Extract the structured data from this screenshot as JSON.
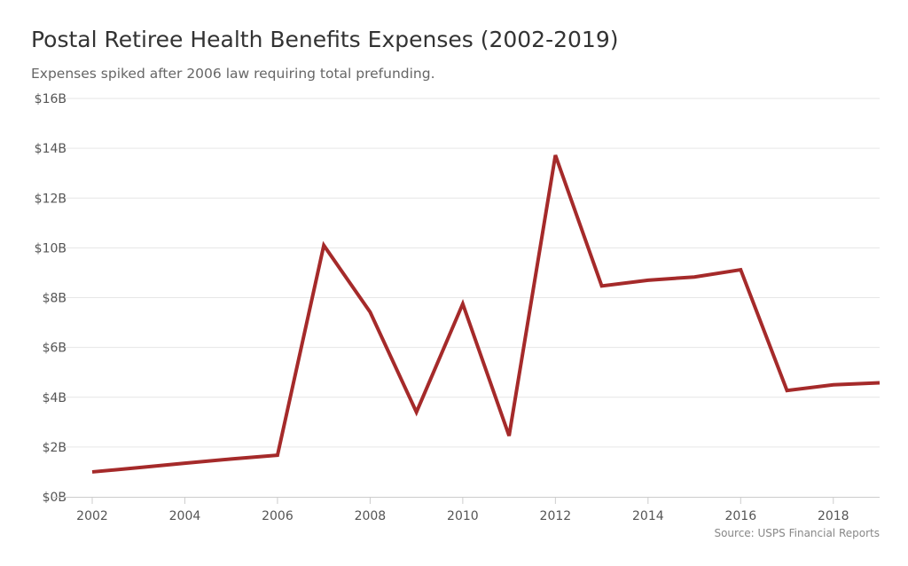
{
  "chart_data": {
    "type": "line",
    "title": "Postal Retiree Health Benefits Expenses (2002-2019)",
    "subtitle": "Expenses spiked after 2006 law requiring total prefunding.",
    "source": "Source: USPS Financial Reports",
    "xlabel": "",
    "ylabel": "",
    "x": [
      2002,
      2003,
      2004,
      2005,
      2006,
      2007,
      2008,
      2009,
      2010,
      2011,
      2012,
      2013,
      2014,
      2015,
      2016,
      2017,
      2018,
      2019
    ],
    "series": [
      {
        "values": [
          1.0,
          1.17,
          1.35,
          1.52,
          1.67,
          10.1,
          7.42,
          3.4,
          7.75,
          2.45,
          13.72,
          8.47,
          8.7,
          8.83,
          9.12,
          4.27,
          4.5,
          4.58
        ],
        "color": "#a52a2a"
      }
    ],
    "xlim": [
      2002,
      2019
    ],
    "ylim": [
      0,
      16
    ],
    "x_ticks": [
      2002,
      2004,
      2006,
      2008,
      2010,
      2012,
      2014,
      2016,
      2018
    ],
    "x_tick_labels": [
      "2002",
      "2004",
      "2006",
      "2008",
      "2010",
      "2012",
      "2014",
      "2016",
      "2018"
    ],
    "y_ticks": [
      0,
      2,
      4,
      6,
      8,
      10,
      12,
      14,
      16
    ],
    "y_tick_labels": [
      "$0B",
      "$2B",
      "$4B",
      "$6B",
      "$8B",
      "$10B",
      "$12B",
      "$14B",
      "$16B"
    ],
    "grid": true,
    "legend": "none",
    "grid_color": "#e6e6e6",
    "axis_color": "#cccccc"
  }
}
